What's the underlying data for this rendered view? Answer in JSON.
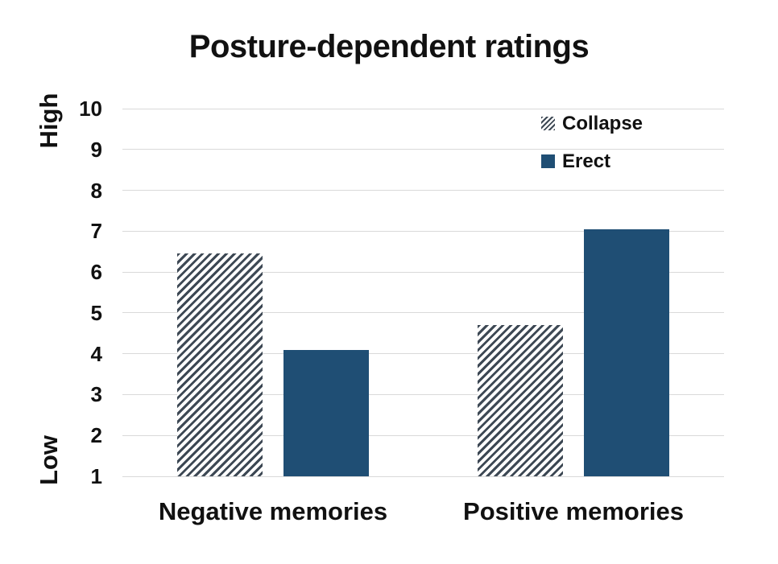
{
  "chart_data": {
    "type": "bar",
    "title": "Posture-dependent ratings",
    "categories": [
      "Negative memories",
      "Positive memories"
    ],
    "series": [
      {
        "name": "Collapse",
        "style": "hatched",
        "values": [
          6.45,
          4.7
        ]
      },
      {
        "name": "Erect",
        "style": "solid",
        "values": [
          4.1,
          7.05
        ]
      }
    ],
    "ylabel_top": "High",
    "ylabel_bottom": "Low",
    "yticks": [
      1,
      2,
      3,
      4,
      5,
      6,
      7,
      8,
      9,
      10
    ],
    "ylim": [
      1,
      10
    ],
    "grid": true,
    "legend_position": "top-right-inside",
    "colors": {
      "erect_fill": "#1F4E74",
      "hatch_stripe": "#3D4854",
      "hatch_background": "#FFFFFF",
      "gridline": "#D9D9D9",
      "text": "#111111",
      "background": "#FFFFFF"
    }
  }
}
